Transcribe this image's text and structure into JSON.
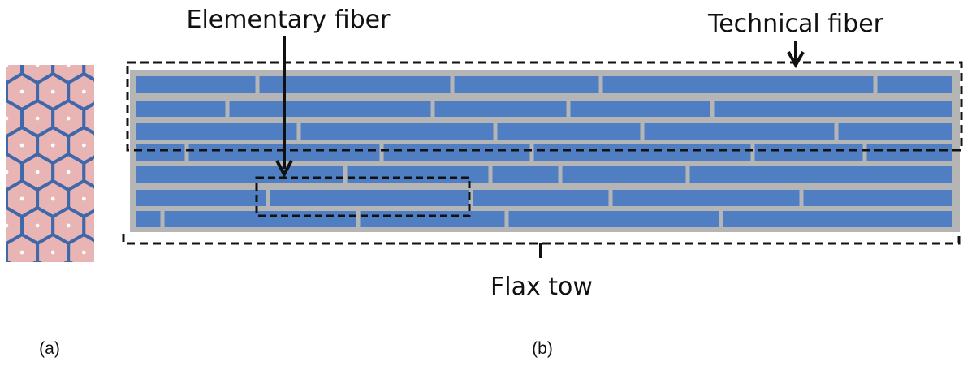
{
  "labels": {
    "elementary": "Elementary fiber",
    "technical": "Technical fiber",
    "tow": "Flax tow",
    "panel_a": "(a)",
    "panel_b": "(b)"
  },
  "colors": {
    "fiber_fill": "#4f7fc2",
    "matrix_gray": "#b5b5b5",
    "hex_fill": "#e8b4b4",
    "hex_edge": "#3f68ab",
    "cell_dot": "#ffffff",
    "dash_line": "#111111"
  },
  "icons": {
    "down_arrow": "arrow-down-icon"
  }
}
